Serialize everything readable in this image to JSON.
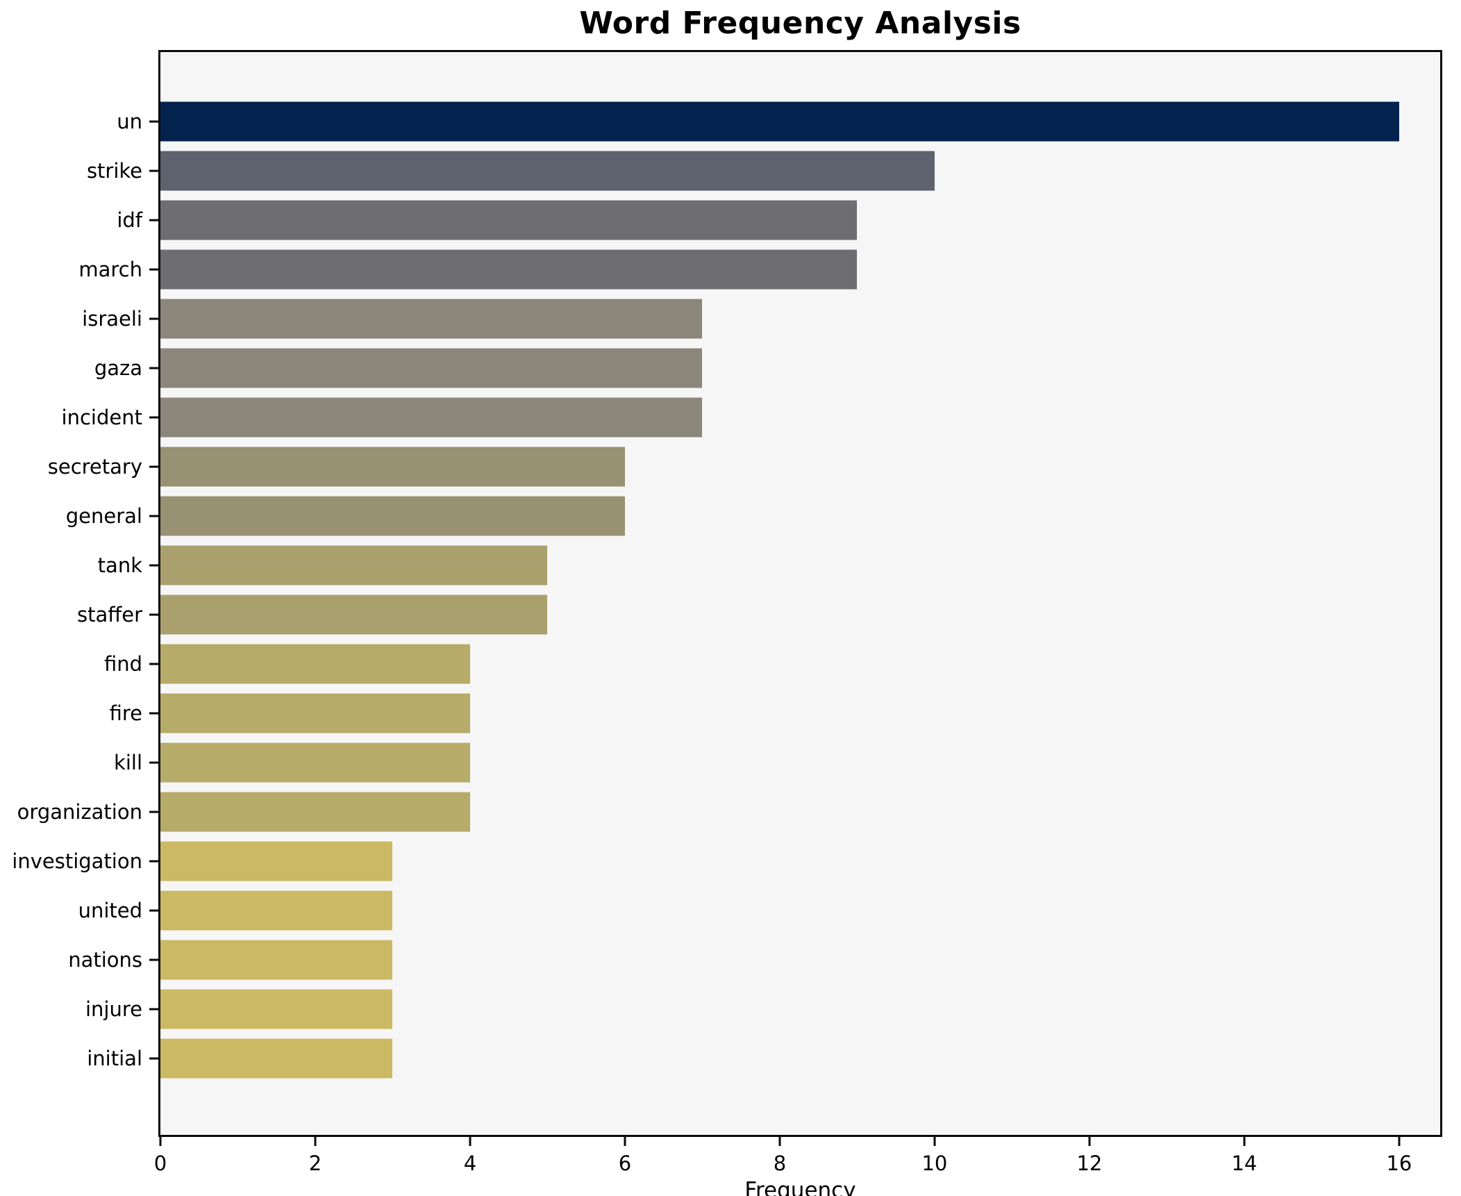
{
  "chart_data": {
    "type": "bar",
    "orientation": "horizontal",
    "title": "Word Frequency Analysis",
    "xlabel": "Frequency",
    "ylabel": "",
    "categories": [
      "un",
      "strike",
      "idf",
      "march",
      "israeli",
      "gaza",
      "incident",
      "secretary",
      "general",
      "tank",
      "staffer",
      "find",
      "fire",
      "kill",
      "organization",
      "investigation",
      "united",
      "nations",
      "injure",
      "initial"
    ],
    "values": [
      16,
      10,
      9,
      9,
      7,
      7,
      7,
      6,
      6,
      5,
      5,
      4,
      4,
      4,
      4,
      3,
      3,
      3,
      3,
      3
    ],
    "bar_colors": [
      "#03224d",
      "#5e626f",
      "#6d6d72",
      "#6d6d72",
      "#8a877a",
      "#8a877a",
      "#8a877a",
      "#999272",
      "#999272",
      "#aaa06e",
      "#aaa06e",
      "#b6ab68",
      "#b6ab68",
      "#b6ab68",
      "#b6ab68",
      "#cbb963",
      "#cbb963",
      "#cbb963",
      "#cbb963",
      "#cbb963"
    ],
    "xticks": [
      0,
      2,
      4,
      6,
      8,
      10,
      12,
      14,
      16
    ],
    "xlim": [
      0,
      16.53
    ],
    "grid": "off",
    "legend": "none",
    "colors": {
      "figure_background": "#ffffff",
      "plot_background": "#f6f6f7",
      "spine": "#0a0a0a",
      "text": "#000000"
    }
  }
}
